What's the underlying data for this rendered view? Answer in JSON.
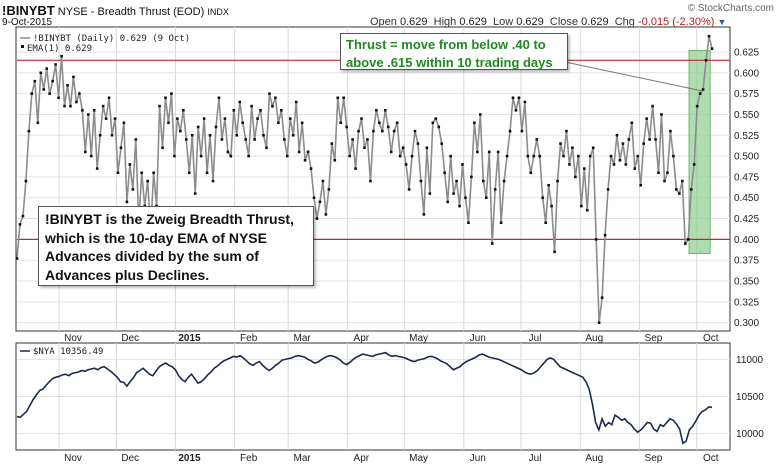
{
  "header": {
    "symbol": "!BINYBT",
    "description": "NYSE - Breadth Thrust (EOD)",
    "exchange": "INDX",
    "date": "9-Oct-2015",
    "copyright": "© StockCharts.com",
    "open_label": "Open",
    "open": "0.629",
    "high_label": "High",
    "high": "0.629",
    "low_label": "Low",
    "low": "0.629",
    "close_label": "Close",
    "close": "0.629",
    "chg_label": "Chg",
    "chg": "-0.015 (-2.30%)"
  },
  "annotations": {
    "thrust_note": "Thrust = move from below .40 to\nabove .615 within 10 trading days",
    "description_note": "!BINYBT is the Zweig Breadth Thrust,\nwhich is the 10-day EMA of NYSE\nAdvances divided by the sum of\nAdvances plus Declines."
  },
  "colors": {
    "main_line": "#8c8c8c",
    "dots": "#111111",
    "threshold_lines": "#c0272d",
    "thrust_highlight": "#8fce8f",
    "nya_line": "#1a2a4a",
    "note_text_green": "#1f8a1f",
    "chg_color": "#b02020"
  },
  "chart_data": [
    {
      "type": "line",
      "legend": [
        "!BINYBT (Daily) 0.629 (9 Oct)",
        "EMA(1) 0.629"
      ],
      "ylim": [
        0.29,
        0.655
      ],
      "yticks": [
        0.3,
        0.325,
        0.35,
        0.375,
        0.4,
        0.425,
        0.45,
        0.475,
        0.5,
        0.525,
        0.55,
        0.575,
        0.6,
        0.625
      ],
      "reference_lines": [
        0.615,
        0.4
      ],
      "x_month_labels": [
        "Nov",
        "Dec",
        "2015",
        "Feb",
        "Mar",
        "Apr",
        "May",
        "Jun",
        "Jul",
        "Aug",
        "Sep",
        "Oct"
      ],
      "x_start": "2014-10-10",
      "x_end": "2015-10-09",
      "thrust_window": [
        "2015-09-28",
        "2015-10-07"
      ],
      "series": [
        {
          "name": "!BINYBT",
          "values": [
            0.377,
            0.418,
            0.428,
            0.47,
            0.53,
            0.575,
            0.59,
            0.54,
            0.6,
            0.58,
            0.605,
            0.575,
            0.59,
            0.61,
            0.57,
            0.62,
            0.56,
            0.585,
            0.56,
            0.595,
            0.565,
            0.575,
            0.555,
            0.505,
            0.55,
            0.5,
            0.555,
            0.485,
            0.525,
            0.56,
            0.545,
            0.57,
            0.525,
            0.545,
            0.48,
            0.51,
            0.54,
            0.445,
            0.49,
            0.46,
            0.52,
            0.42,
            0.48,
            0.44,
            0.47,
            0.41,
            0.48,
            0.44,
            0.56,
            0.51,
            0.57,
            0.54,
            0.575,
            0.5,
            0.545,
            0.53,
            0.555,
            0.52,
            0.48,
            0.525,
            0.455,
            0.535,
            0.5,
            0.545,
            0.48,
            0.525,
            0.47,
            0.535,
            0.57,
            0.52,
            0.545,
            0.505,
            0.5,
            0.555,
            0.525,
            0.565,
            0.54,
            0.52,
            0.5,
            0.56,
            0.52,
            0.545,
            0.555,
            0.525,
            0.51,
            0.575,
            0.56,
            0.57,
            0.54,
            0.555,
            0.52,
            0.5,
            0.545,
            0.525,
            0.565,
            0.505,
            0.54,
            0.495,
            0.505,
            0.485,
            0.45,
            0.425,
            0.445,
            0.47,
            0.43,
            0.46,
            0.515,
            0.495,
            0.57,
            0.54,
            0.57,
            0.535,
            0.5,
            0.52,
            0.485,
            0.53,
            0.545,
            0.51,
            0.52,
            0.47,
            0.53,
            0.555,
            0.54,
            0.53,
            0.555,
            0.535,
            0.505,
            0.53,
            0.54,
            0.5,
            0.51,
            0.49,
            0.46,
            0.5,
            0.53,
            0.515,
            0.47,
            0.43,
            0.51,
            0.455,
            0.54,
            0.545,
            0.535,
            0.515,
            0.48,
            0.445,
            0.5,
            0.455,
            0.47,
            0.44,
            0.49,
            0.45,
            0.42,
            0.475,
            0.54,
            0.505,
            0.55,
            0.47,
            0.45,
            0.505,
            0.395,
            0.46,
            0.505,
            0.42,
            0.47,
            0.5,
            0.53,
            0.57,
            0.555,
            0.57,
            0.53,
            0.565,
            0.5,
            0.48,
            0.5,
            0.52,
            0.5,
            0.45,
            0.42,
            0.465,
            0.44,
            0.385,
            0.47,
            0.515,
            0.5,
            0.53,
            0.49,
            0.51,
            0.475,
            0.5,
            0.44,
            0.485,
            0.435,
            0.5,
            0.51,
            0.4,
            0.3,
            0.33,
            0.405,
            0.46,
            0.5,
            0.49,
            0.525,
            0.495,
            0.515,
            0.49,
            0.52,
            0.54,
            0.485,
            0.5,
            0.465,
            0.515,
            0.545,
            0.52,
            0.56,
            0.52,
            0.48,
            0.55,
            0.47,
            0.48,
            0.53,
            0.5,
            0.46,
            0.455,
            0.47,
            0.395,
            0.4,
            0.46,
            0.49,
            0.56,
            0.575,
            0.58,
            0.615,
            0.644,
            0.629
          ]
        }
      ]
    },
    {
      "type": "line",
      "legend": [
        "$NYA 10356.49"
      ],
      "ylim": [
        9780,
        11220
      ],
      "yticks": [
        10000,
        10500,
        11000
      ],
      "x_month_labels": [
        "Nov",
        "Dec",
        "2015",
        "Feb",
        "Mar",
        "Apr",
        "May",
        "Jun",
        "Jul",
        "Aug",
        "Sep",
        "Oct"
      ],
      "series": [
        {
          "name": "$NYA",
          "values": [
            10230,
            10220,
            10260,
            10300,
            10380,
            10460,
            10520,
            10580,
            10600,
            10650,
            10700,
            10740,
            10760,
            10770,
            10790,
            10800,
            10780,
            10810,
            10820,
            10830,
            10850,
            10840,
            10860,
            10870,
            10880,
            10860,
            10890,
            10900,
            10870,
            10840,
            10800,
            10760,
            10700,
            10690,
            10640,
            10700,
            10750,
            10820,
            10850,
            10880,
            10840,
            10800,
            10780,
            10840,
            10900,
            10930,
            10950,
            10920,
            10900,
            10860,
            10780,
            10730,
            10700,
            10760,
            10800,
            10740,
            10680,
            10700,
            10740,
            10790,
            10830,
            10880,
            10910,
            10950,
            10980,
            11000,
            11020,
            11040,
            11030,
            11050,
            11020,
            10980,
            10940,
            10920,
            10950,
            10970,
            10920,
            10880,
            10850,
            10880,
            10920,
            10950,
            10990,
            11000,
            11010,
            11020,
            11040,
            11050,
            11040,
            11030,
            11000,
            10980,
            10950,
            10960,
            10990,
            11020,
            11040,
            11050,
            11040,
            11020,
            10990,
            10950,
            10930,
            10960,
            11000,
            11030,
            11050,
            11070,
            11060,
            11050,
            11040,
            11060,
            11070,
            11080,
            11090,
            11060,
            11040,
            11050,
            11040,
            11030,
            11020,
            11000,
            10980,
            10970,
            10990,
            11000,
            11010,
            11030,
            11040,
            11030,
            11010,
            10980,
            10960,
            10940,
            10900,
            10860,
            10880,
            10900,
            10940,
            10970,
            10990,
            11010,
            11030,
            11060,
            11070,
            11050,
            11030,
            11020,
            11010,
            11000,
            10980,
            10960,
            10940,
            10920,
            10900,
            10880,
            10860,
            10830,
            10810,
            10800,
            10820,
            10850,
            10900,
            10950,
            11000,
            11020,
            11000,
            10950,
            10900,
            10880,
            10860,
            10840,
            10820,
            10800,
            10780,
            10760,
            10700,
            10600,
            10400,
            10150,
            10050,
            10200,
            10100,
            10150,
            10120,
            10250,
            10220,
            10180,
            10200,
            10150,
            10120,
            10060,
            10020,
            10050,
            10100,
            10150,
            10140,
            10060,
            10030,
            10120,
            10100,
            10150,
            10200,
            10180,
            10130,
            10060,
            9870,
            9900,
            10050,
            10100,
            10170,
            10250,
            10300,
            10320,
            10360,
            10356
          ]
        }
      ]
    }
  ]
}
